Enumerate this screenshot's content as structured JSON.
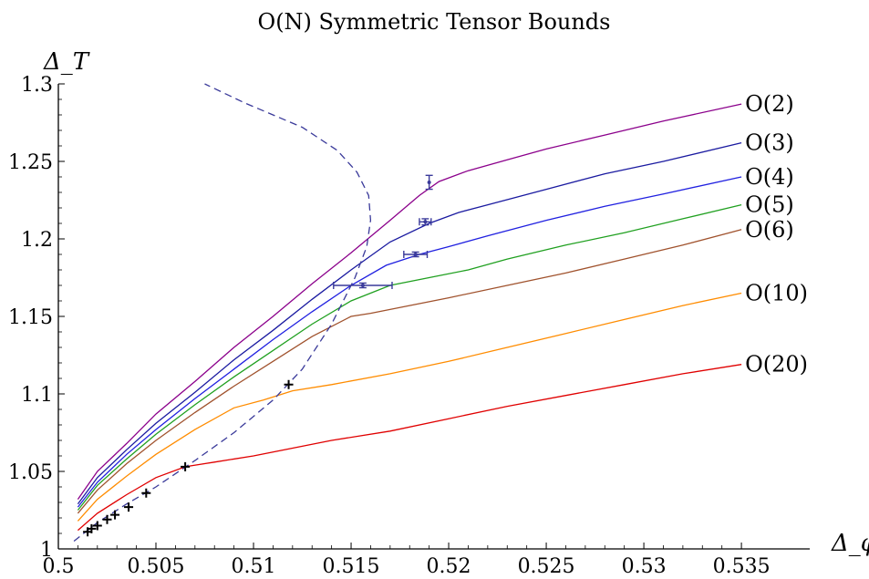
{
  "chart_data": {
    "type": "line",
    "title": "O(N) Symmetric Tensor Bounds",
    "xlabel": "Δ_φ",
    "ylabel": "Δ_T",
    "xlim": [
      0.5,
      0.5385
    ],
    "ylim": [
      1.0,
      1.3
    ],
    "x_ticks": [
      {
        "value": 0.5,
        "label": "0.5"
      },
      {
        "value": 0.505,
        "label": "0.505"
      },
      {
        "value": 0.51,
        "label": "0.51"
      },
      {
        "value": 0.515,
        "label": "0.515"
      },
      {
        "value": 0.52,
        "label": "0.52"
      },
      {
        "value": 0.525,
        "label": "0.525"
      },
      {
        "value": 0.53,
        "label": "0.53"
      },
      {
        "value": 0.535,
        "label": "0.535"
      }
    ],
    "y_ticks": [
      {
        "value": 1.0,
        "label": "1"
      },
      {
        "value": 1.05,
        "label": "1.05"
      },
      {
        "value": 1.1,
        "label": "1.1"
      },
      {
        "value": 1.15,
        "label": "1.15"
      },
      {
        "value": 1.2,
        "label": "1.2"
      },
      {
        "value": 1.25,
        "label": "1.25"
      },
      {
        "value": 1.3,
        "label": "1.3"
      }
    ],
    "grid": false,
    "series": [
      {
        "name": "O(2)",
        "color": "#8b008b",
        "x": [
          0.501,
          0.502,
          0.5035,
          0.505,
          0.507,
          0.509,
          0.511,
          0.513,
          0.515,
          0.517,
          0.5185,
          0.5195,
          0.521,
          0.523,
          0.525,
          0.528,
          0.531,
          0.535
        ],
        "y": [
          1.032,
          1.05,
          1.068,
          1.087,
          1.108,
          1.13,
          1.15,
          1.171,
          1.191,
          1.212,
          1.228,
          1.237,
          1.244,
          1.251,
          1.258,
          1.267,
          1.276,
          1.287
        ]
      },
      {
        "name": "O(3)",
        "color": "#1a1aa0",
        "x": [
          0.501,
          0.502,
          0.5035,
          0.505,
          0.507,
          0.509,
          0.511,
          0.513,
          0.515,
          0.517,
          0.519,
          0.5205,
          0.522,
          0.525,
          0.528,
          0.531,
          0.535
        ],
        "y": [
          1.029,
          1.046,
          1.064,
          1.081,
          1.101,
          1.122,
          1.141,
          1.161,
          1.18,
          1.198,
          1.21,
          1.217,
          1.222,
          1.232,
          1.242,
          1.25,
          1.262
        ]
      },
      {
        "name": "O(4)",
        "color": "#2020e0",
        "x": [
          0.501,
          0.502,
          0.5035,
          0.505,
          0.507,
          0.509,
          0.511,
          0.513,
          0.515,
          0.5168,
          0.5185,
          0.52,
          0.522,
          0.525,
          0.528,
          0.531,
          0.535
        ],
        "y": [
          1.027,
          1.043,
          1.061,
          1.077,
          1.097,
          1.116,
          1.135,
          1.153,
          1.17,
          1.183,
          1.19,
          1.195,
          1.202,
          1.212,
          1.221,
          1.229,
          1.24
        ]
      },
      {
        "name": "O(5)",
        "color": "#20a020",
        "x": [
          0.501,
          0.502,
          0.5035,
          0.505,
          0.507,
          0.509,
          0.511,
          0.513,
          0.515,
          0.517,
          0.519,
          0.521,
          0.523,
          0.526,
          0.529,
          0.532,
          0.535
        ],
        "y": [
          1.025,
          1.041,
          1.058,
          1.074,
          1.093,
          1.111,
          1.128,
          1.145,
          1.16,
          1.17,
          1.175,
          1.18,
          1.187,
          1.196,
          1.204,
          1.213,
          1.222
        ]
      },
      {
        "name": "O(6)",
        "color": "#a0522d",
        "x": [
          0.501,
          0.502,
          0.5035,
          0.505,
          0.507,
          0.509,
          0.511,
          0.513,
          0.515,
          0.516,
          0.518,
          0.52,
          0.523,
          0.526,
          0.529,
          0.532,
          0.535
        ],
        "y": [
          1.023,
          1.038,
          1.055,
          1.07,
          1.088,
          1.105,
          1.121,
          1.137,
          1.15,
          1.152,
          1.157,
          1.162,
          1.17,
          1.178,
          1.187,
          1.196,
          1.206
        ]
      },
      {
        "name": "O(10)",
        "color": "#ff8c00",
        "x": [
          0.501,
          0.502,
          0.5035,
          0.505,
          0.507,
          0.509,
          0.5105,
          0.512,
          0.514,
          0.517,
          0.52,
          0.523,
          0.526,
          0.529,
          0.532,
          0.535
        ],
        "y": [
          1.018,
          1.032,
          1.047,
          1.061,
          1.077,
          1.091,
          1.096,
          1.102,
          1.106,
          1.113,
          1.121,
          1.13,
          1.139,
          1.148,
          1.157,
          1.165
        ]
      },
      {
        "name": "O(20)",
        "color": "#e00000",
        "x": [
          0.501,
          0.502,
          0.5035,
          0.505,
          0.5065,
          0.508,
          0.51,
          0.512,
          0.514,
          0.517,
          0.52,
          0.523,
          0.526,
          0.529,
          0.532,
          0.535
        ],
        "y": [
          1.012,
          1.023,
          1.035,
          1.046,
          1.053,
          1.056,
          1.06,
          1.065,
          1.07,
          1.076,
          1.084,
          1.092,
          1.099,
          1.106,
          1.113,
          1.119
        ]
      }
    ],
    "dashed_curve": {
      "color": "#3a3a9a",
      "x": [
        0.5008,
        0.502,
        0.5035,
        0.505,
        0.507,
        0.509,
        0.511,
        0.5125,
        0.514,
        0.5152,
        0.5158,
        0.516,
        0.5159,
        0.5153,
        0.5143,
        0.5125,
        0.5095,
        0.5075
      ],
      "y": [
        1.005,
        1.017,
        1.029,
        1.04,
        1.057,
        1.075,
        1.096,
        1.116,
        1.145,
        1.175,
        1.195,
        1.212,
        1.228,
        1.243,
        1.257,
        1.272,
        1.288,
        1.3
      ]
    },
    "markers": {
      "color": "#000000",
      "x": [
        0.5015,
        0.5017,
        0.502,
        0.5025,
        0.5029,
        0.5036,
        0.5045,
        0.5065,
        0.5118
      ],
      "y": [
        1.011,
        1.013,
        1.015,
        1.019,
        1.022,
        1.027,
        1.036,
        1.053,
        1.106
      ]
    },
    "error_points": {
      "color": "#3a3a9a",
      "points": [
        {
          "x": 0.519,
          "y": 1.2365,
          "xerr": 0.0,
          "yerr": 0.0045
        },
        {
          "x": 0.5188,
          "y": 1.211,
          "xerr": 0.0003,
          "yerr": 0.002
        },
        {
          "x": 0.5183,
          "y": 1.19,
          "xerr": 0.0006,
          "yerr": 0.0015
        },
        {
          "x": 0.5156,
          "y": 1.17,
          "xerr": 0.0015,
          "yerr": 0.0015
        }
      ]
    }
  }
}
